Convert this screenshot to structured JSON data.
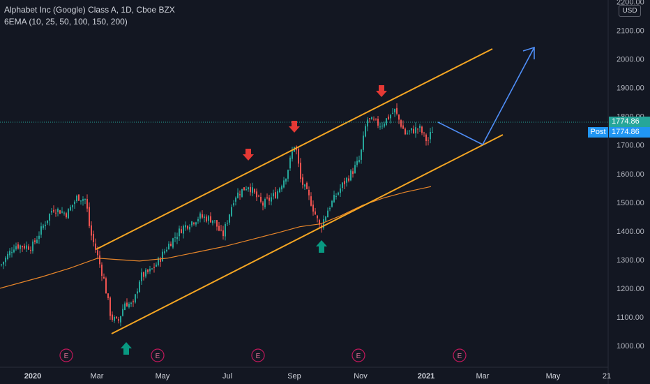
{
  "header": {
    "title": "Alphabet Inc (Google) Class A, 1D, Cboe BZX",
    "indicator": "6EMA (10, 25, 50, 100, 150, 200)"
  },
  "price_axis": {
    "currency": "USD",
    "ticks": [
      "2200.00",
      "2100.00",
      "2000.00",
      "1900.00",
      "1800.00",
      "1700.00",
      "1600.00",
      "1500.00",
      "1400.00",
      "1300.00",
      "1200.00",
      "1100.00",
      "1000.00"
    ],
    "tick_values": [
      2200,
      2100,
      2000,
      1900,
      1800,
      1700,
      1600,
      1500,
      1400,
      1300,
      1200,
      1100,
      1000
    ],
    "last_price": "1774.86",
    "post_label": "Post",
    "post_price": "1774.86"
  },
  "time_axis": {
    "labels": [
      "2020",
      "Mar",
      "May",
      "Jul",
      "Sep",
      "Nov",
      "2021",
      "Mar",
      "May",
      "21"
    ]
  },
  "earnings_marker": "E",
  "colors": {
    "background": "#131722",
    "up": "#26a69a",
    "down": "#ef5350",
    "channel": "#f5a623",
    "ema": "#e8862a",
    "projection": "#4f8ef7",
    "arrow_down": "#e53935",
    "arrow_up": "#089981",
    "post": "#2196f3"
  }
}
